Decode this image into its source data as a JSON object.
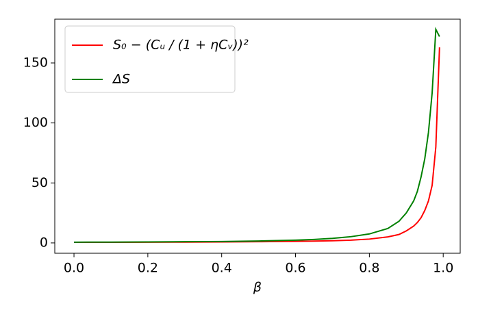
{
  "chart_data": {
    "type": "line",
    "x_label": "β",
    "x": [
      0,
      0.1,
      0.2,
      0.3,
      0.4,
      0.5,
      0.6,
      0.65,
      0.7,
      0.75,
      0.8,
      0.85,
      0.88,
      0.9,
      0.92,
      0.93,
      0.94,
      0.95,
      0.96,
      0.97,
      0.98,
      0.99
    ],
    "series": [
      {
        "name": "S₀ − (Cᵤ / (1 + ηCᵥ))²",
        "color": "#ff0000",
        "values": [
          0.5,
          0.5,
          0.6,
          0.7,
          0.8,
          1.0,
          1.3,
          1.5,
          1.8,
          2.3,
          3.2,
          5,
          7,
          10,
          14,
          17,
          21,
          27,
          35,
          48,
          80,
          163
        ]
      },
      {
        "name": "ΔS",
        "color": "#008000",
        "values": [
          0.6,
          0.7,
          0.8,
          1.0,
          1.2,
          1.6,
          2.3,
          2.9,
          3.8,
          5.2,
          7.5,
          12,
          18,
          25,
          35,
          43,
          55,
          70,
          92,
          125,
          178,
          172
        ]
      }
    ],
    "xlim": [
      -0.052,
      1.046
    ],
    "ylim": [
      -8.6,
      186.5
    ],
    "xticks": [
      {
        "value": 0,
        "label": "0.0"
      },
      0.2,
      0.4,
      0.6,
      0.8,
      {
        "value": 1,
        "label": "1.0"
      }
    ],
    "yticks": [
      0,
      50,
      100,
      150
    ],
    "legend": "upper-left",
    "grid": false
  }
}
